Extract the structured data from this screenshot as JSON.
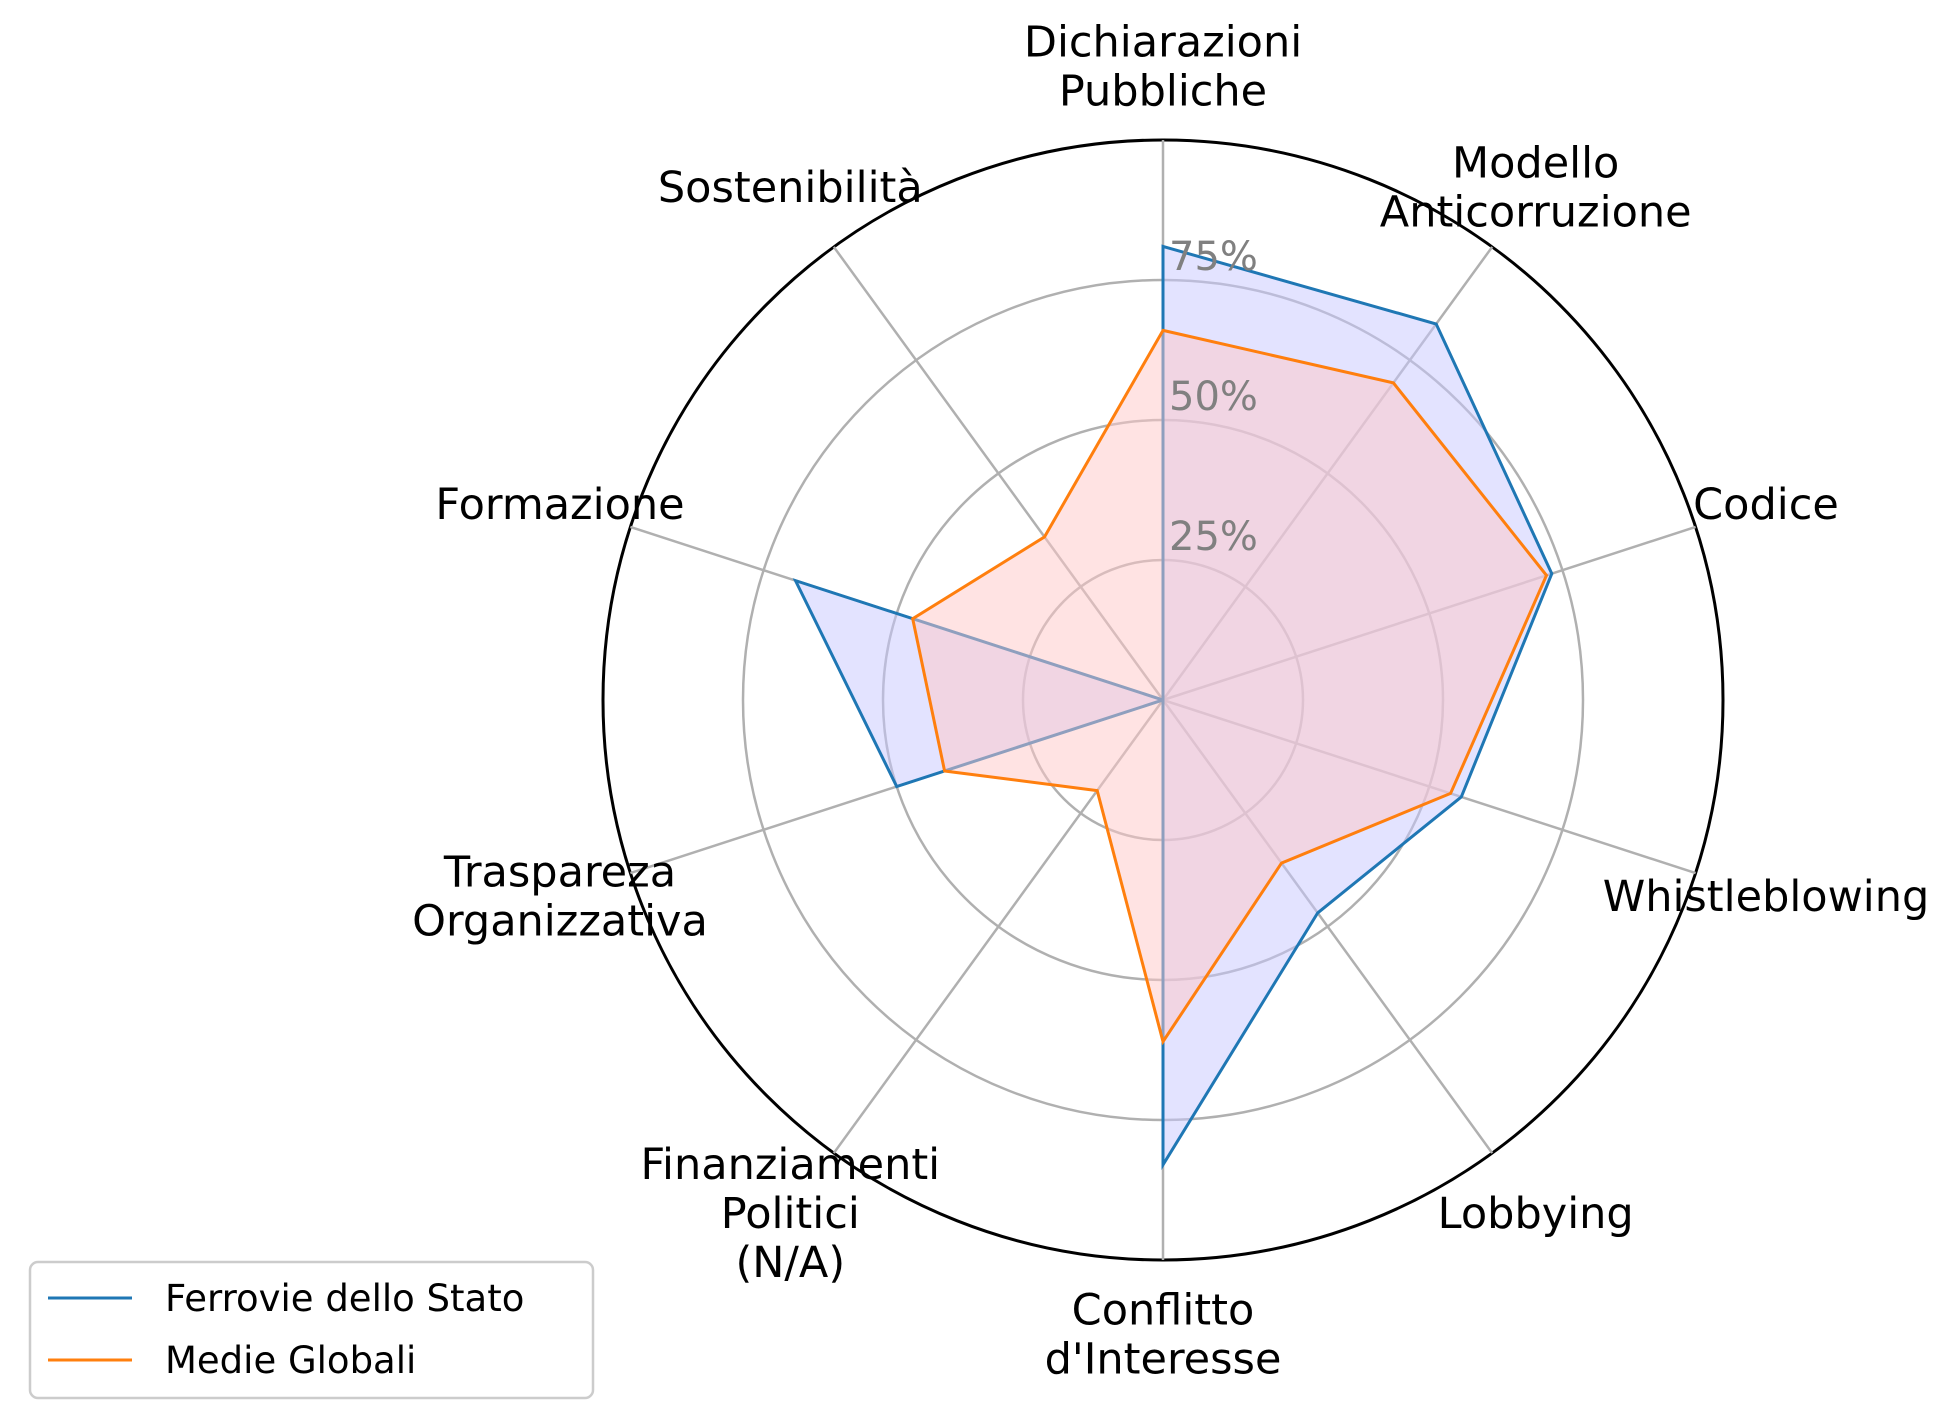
{
  "chart_data": {
    "type": "radar",
    "title": "",
    "categories": [
      "Dichiarazioni\nPubbliche",
      "Modello\nAnticorruzione",
      "Codice",
      "Whistleblowing",
      "Lobbying",
      "Conflitto\nd'Interesse",
      "Finanziamenti\nPolitici\n(N/A)",
      "Traspareza\nOrganizzativa",
      "Formazione",
      "Sostenibilità"
    ],
    "rlim": [
      0,
      100
    ],
    "radial_ticks": [
      25,
      50,
      75
    ],
    "radial_tick_labels": [
      "25%",
      "50%",
      "75%"
    ],
    "grid": true,
    "legend_position": "lower-left",
    "series": [
      {
        "name": "Ferrovie dello Stato",
        "color": "#1f77b4",
        "fill_color": "#c8c8ff",
        "values": [
          81,
          83,
          73,
          56,
          47,
          83,
          0,
          50,
          69,
          0
        ]
      },
      {
        "name": "Medie Globali",
        "color": "#ff7f0e",
        "fill_color": "#ffc8c8",
        "values": [
          66,
          70,
          72,
          54,
          36,
          61,
          20,
          41,
          47,
          36
        ]
      }
    ]
  }
}
